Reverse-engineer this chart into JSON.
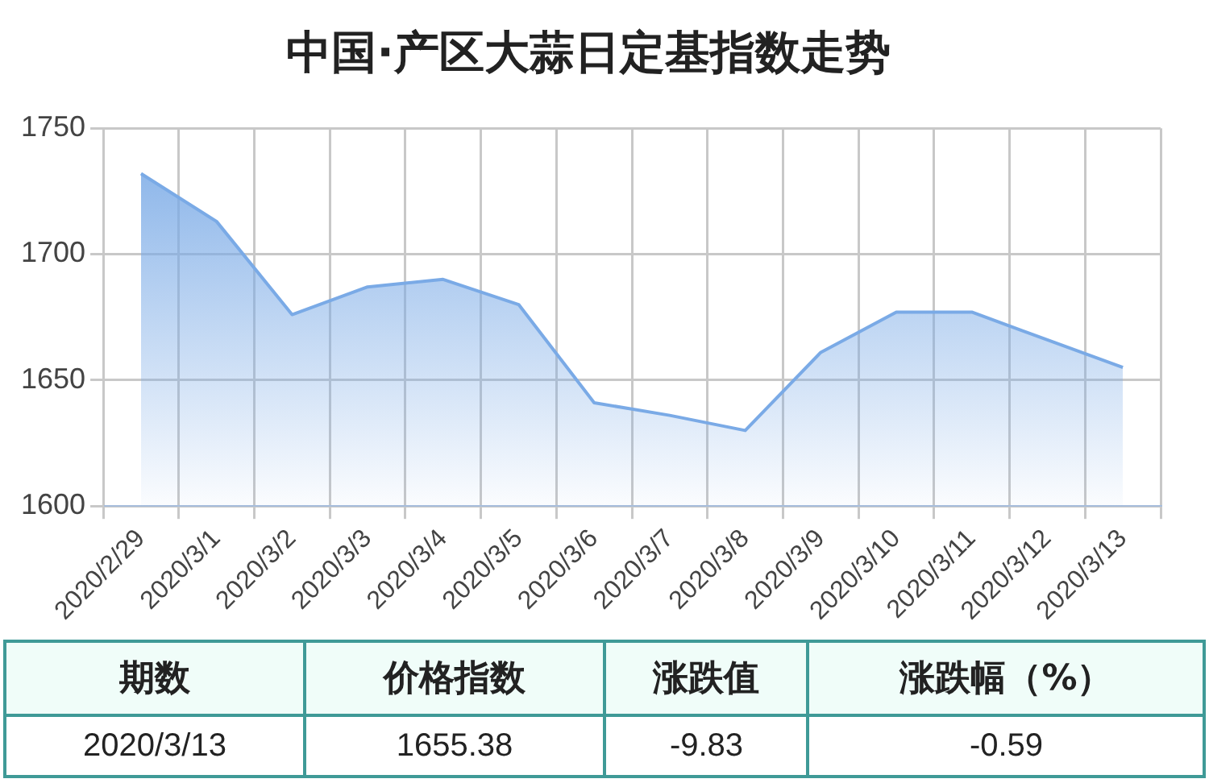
{
  "chart_data": {
    "type": "area",
    "title": "中国·产区大蒜日定基指数走势",
    "categories": [
      "2020/2/29",
      "2020/3/1",
      "2020/3/2",
      "2020/3/3",
      "2020/3/4",
      "2020/3/5",
      "2020/3/6",
      "2020/3/7",
      "2020/3/8",
      "2020/3/9",
      "2020/3/10",
      "2020/3/11",
      "2020/3/12",
      "2020/3/13"
    ],
    "series": [
      {
        "color": "#7aaae6",
        "values": [
          1732,
          1713,
          1676,
          1687,
          1690,
          1680,
          1641,
          1636,
          1630,
          1661,
          1677,
          1677,
          1666,
          1655
        ]
      }
    ],
    "ylim": [
      1600,
      1750
    ],
    "yticks": [
      1600,
      1650,
      1700,
      1750
    ],
    "grid": true,
    "legend": false,
    "marker": "none",
    "annotations": [
      "期数",
      "价格指数",
      "涨跌值",
      "涨跌幅（%）",
      "2020/3/13",
      "1655.38",
      "-9.83",
      "-0.59"
    ]
  }
}
